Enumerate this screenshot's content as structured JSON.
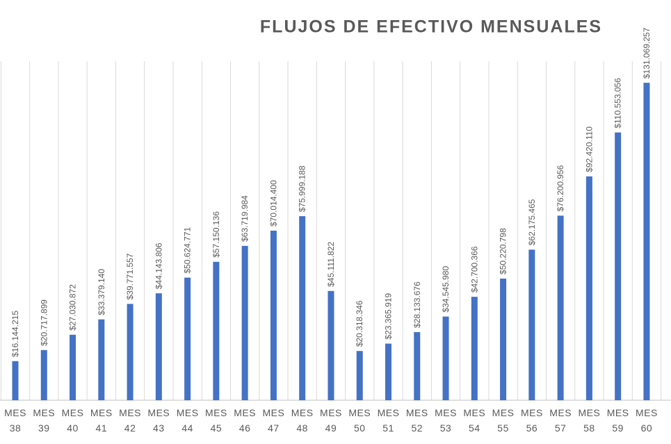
{
  "chart_data": {
    "type": "bar",
    "title": "FLUJOS DE EFECTIVO MENSUALES",
    "categories": [
      "MES 38",
      "MES 39",
      "MES 40",
      "MES 41",
      "MES 42",
      "MES 43",
      "MES 44",
      "MES 45",
      "MES 46",
      "MES 47",
      "MES 48",
      "MES 49",
      "MES 50",
      "MES 51",
      "MES 52",
      "MES 53",
      "MES 54",
      "MES 55",
      "MES 56",
      "MES 57",
      "MES 58",
      "MES 59",
      "MES 60"
    ],
    "values": [
      16144215,
      20717899,
      27030872,
      33379140,
      39771557,
      44143806,
      50624771,
      57150136,
      63719984,
      70014400,
      75999188,
      45111822,
      20318346,
      23365919,
      28133676,
      34545980,
      42700366,
      50220798,
      62175465,
      76200956,
      92420110,
      110553056,
      131069257
    ],
    "value_labels": [
      "$16.144.215",
      "$20.717.899",
      "$27.030.872",
      "$33.379.140",
      "$39.771.557",
      "$44.143.806",
      "$50.624.771",
      "$57.150.136",
      "$63.719.984",
      "$70.014.400",
      "$75.999.188",
      "$45.111.822",
      "$20.318.346",
      "$23.365.919",
      "$28.133.676",
      "$34.545.980",
      "$42.700.366",
      "$50.220.798",
      "$62.175.465",
      "$76.200.956",
      "$92.420.110",
      "$110.553.056",
      "$131.069.257"
    ],
    "color": "#4472c4",
    "ylim": [
      0,
      140000000
    ],
    "grid": true
  }
}
